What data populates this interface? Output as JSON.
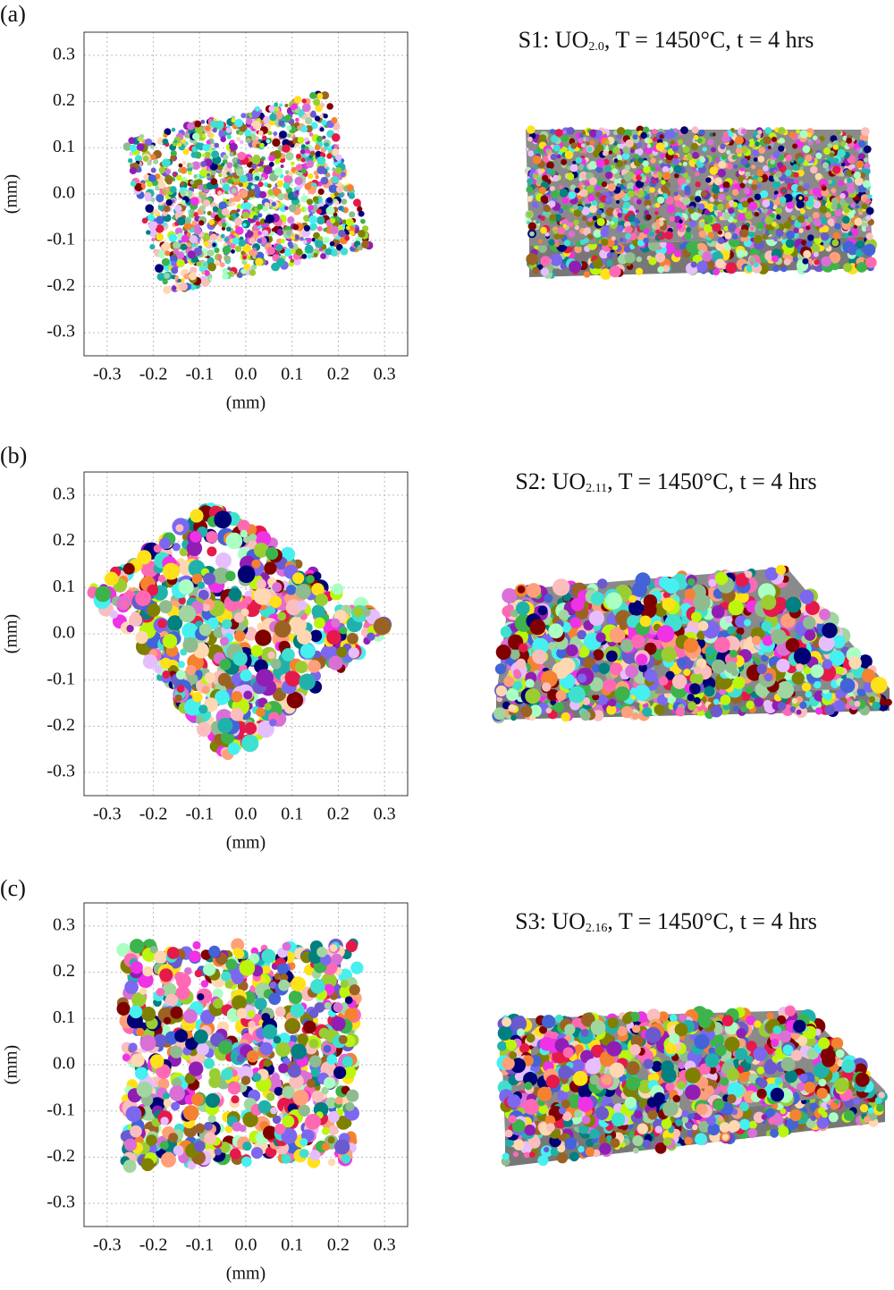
{
  "chart_data": [
    {
      "type": "map",
      "panel_label": "(a)",
      "title": [
        "S1: UO",
        "2.0",
        ", T = 1450°C, t = 4 hrs"
      ],
      "xlabel": "(mm)",
      "ylabel": "(mm)",
      "xlim": [
        -0.35,
        0.35
      ],
      "ylim": [
        -0.35,
        0.35
      ],
      "xticks": [
        -0.3,
        -0.2,
        -0.1,
        {
          "value": 0,
          "label": "0.0"
        },
        0.1,
        0.2,
        0.3
      ],
      "yticks": [
        -0.3,
        -0.2,
        -0.1,
        {
          "value": 0,
          "label": "0.0"
        },
        0.1,
        0.2,
        0.3
      ],
      "grid": true
    },
    {
      "type": "map",
      "panel_label": "(b)",
      "title": [
        "S2: UO",
        "2.11",
        ", T = 1450°C, t = 4 hrs"
      ],
      "xlabel": "(mm)",
      "ylabel": "(mm)",
      "xlim": [
        -0.35,
        0.35
      ],
      "ylim": [
        -0.35,
        0.35
      ],
      "xticks": [
        -0.3,
        -0.2,
        -0.1,
        {
          "value": 0,
          "label": "0.0"
        },
        0.1,
        0.2,
        0.3
      ],
      "yticks": [
        -0.3,
        -0.2,
        -0.1,
        {
          "value": 0,
          "label": "0.0"
        },
        0.1,
        0.2,
        0.3
      ],
      "grid": true
    },
    {
      "type": "map",
      "panel_label": "(c)",
      "title": [
        "S3: UO",
        "2.16",
        ", T = 1450°C, t = 4 hrs"
      ],
      "xlabel": "(mm)",
      "ylabel": "(mm)",
      "xlim": [
        -0.35,
        0.35
      ],
      "ylim": [
        -0.35,
        0.35
      ],
      "xticks": [
        -0.3,
        -0.2,
        -0.1,
        {
          "value": 0,
          "label": "0.0"
        },
        0.1,
        0.2,
        0.3
      ],
      "yticks": [
        -0.3,
        -0.2,
        -0.1,
        {
          "value": 0,
          "label": "0.0"
        },
        0.1,
        0.2,
        0.3
      ],
      "grid": true
    }
  ]
}
